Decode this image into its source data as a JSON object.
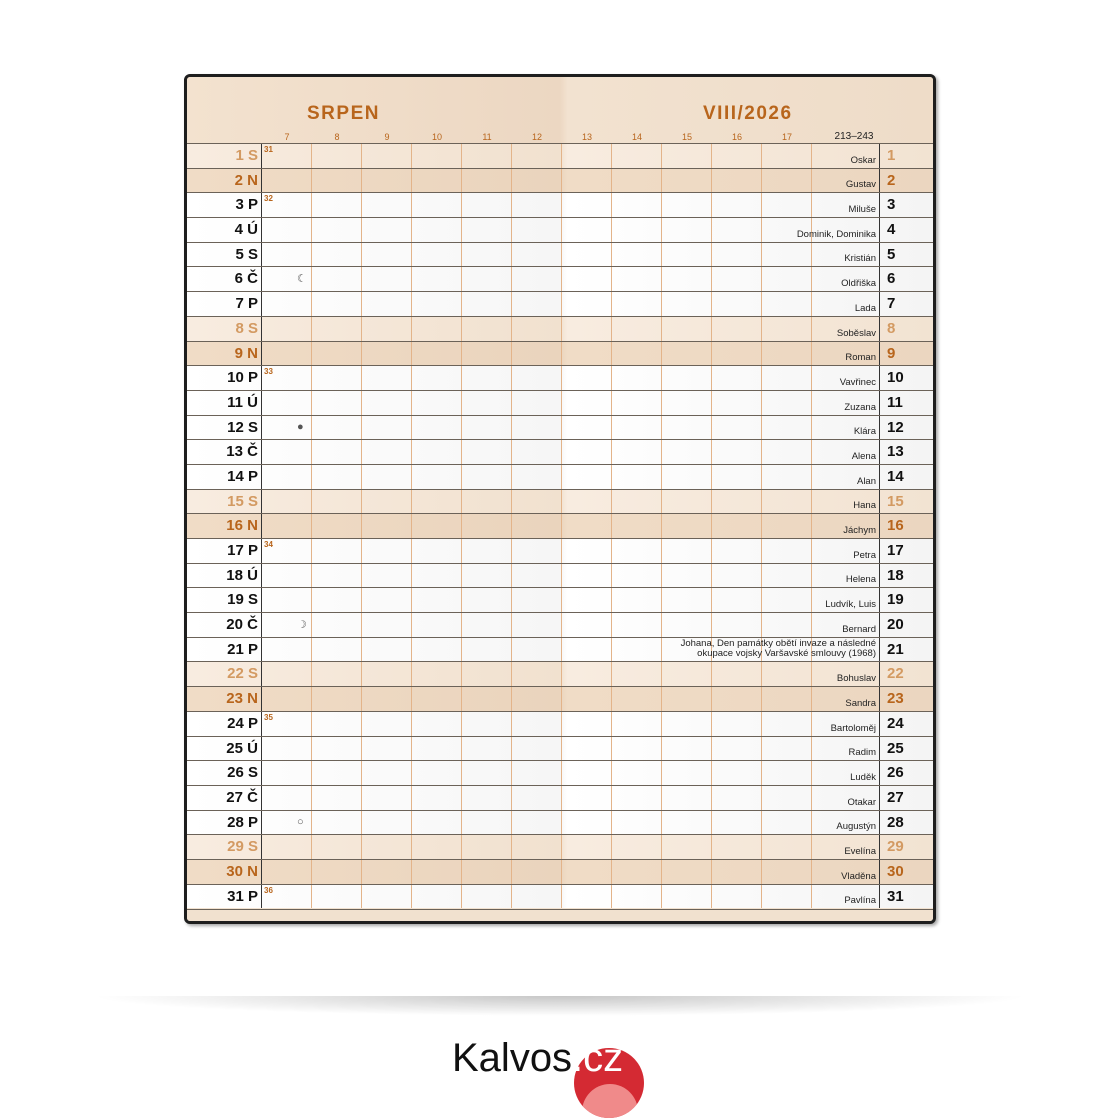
{
  "header": {
    "month": "SRPEN",
    "period": "VIII/2026",
    "day_range": "213–243",
    "hours": [
      "7",
      "8",
      "9",
      "10",
      "11",
      "12",
      "13",
      "14",
      "15",
      "16",
      "17"
    ]
  },
  "colors": {
    "accent": "#b8651c",
    "saturday": "#d39a62",
    "weekend_bg": "#f1e1cf",
    "border": "#1e1e1e"
  },
  "days": [
    {
      "d": "1",
      "w": "S",
      "t": "sat",
      "wk": "31",
      "name": "Oskar"
    },
    {
      "d": "2",
      "w": "N",
      "t": "sun",
      "name": "Gustav"
    },
    {
      "d": "3",
      "w": "P",
      "wk": "32",
      "name": "Miluše"
    },
    {
      "d": "4",
      "w": "Ú",
      "name": "Dominik, Dominika"
    },
    {
      "d": "5",
      "w": "S",
      "name": "Kristián"
    },
    {
      "d": "6",
      "w": "Č",
      "moon": "last-quarter-icon",
      "name": "Oldřiška"
    },
    {
      "d": "7",
      "w": "P",
      "name": "Lada"
    },
    {
      "d": "8",
      "w": "S",
      "t": "sat",
      "name": "Soběslav"
    },
    {
      "d": "9",
      "w": "N",
      "t": "sun",
      "name": "Roman"
    },
    {
      "d": "10",
      "w": "P",
      "wk": "33",
      "name": "Vavřinec"
    },
    {
      "d": "11",
      "w": "Ú",
      "name": "Zuzana"
    },
    {
      "d": "12",
      "w": "S",
      "moon": "new-moon-icon",
      "name": "Klára"
    },
    {
      "d": "13",
      "w": "Č",
      "name": "Alena"
    },
    {
      "d": "14",
      "w": "P",
      "name": "Alan"
    },
    {
      "d": "15",
      "w": "S",
      "t": "sat",
      "name": "Hana"
    },
    {
      "d": "16",
      "w": "N",
      "t": "sun",
      "name": "Jáchym"
    },
    {
      "d": "17",
      "w": "P",
      "wk": "34",
      "name": "Petra"
    },
    {
      "d": "18",
      "w": "Ú",
      "name": "Helena"
    },
    {
      "d": "19",
      "w": "S",
      "name": "Ludvík, Luis"
    },
    {
      "d": "20",
      "w": "Č",
      "moon": "first-quarter-icon",
      "name": "Bernard"
    },
    {
      "d": "21",
      "w": "P",
      "name": "Johana, Den památky obětí invaze a následné okupace vojsky Varšavské smlouvy (1968)"
    },
    {
      "d": "22",
      "w": "S",
      "t": "sat",
      "name": "Bohuslav"
    },
    {
      "d": "23",
      "w": "N",
      "t": "sun",
      "name": "Sandra"
    },
    {
      "d": "24",
      "w": "P",
      "wk": "35",
      "name": "Bartoloměj"
    },
    {
      "d": "25",
      "w": "Ú",
      "name": "Radim"
    },
    {
      "d": "26",
      "w": "S",
      "name": "Luděk"
    },
    {
      "d": "27",
      "w": "Č",
      "name": "Otakar"
    },
    {
      "d": "28",
      "w": "P",
      "moon": "full-moon-icon",
      "name": "Augustýn"
    },
    {
      "d": "29",
      "w": "S",
      "t": "sat",
      "name": "Evelína"
    },
    {
      "d": "30",
      "w": "N",
      "t": "sun",
      "name": "Vladěna"
    },
    {
      "d": "31",
      "w": "P",
      "wk": "36",
      "name": "Pavlína"
    }
  ],
  "logo": {
    "text": "Kalvos",
    "suffix": ".cz"
  }
}
